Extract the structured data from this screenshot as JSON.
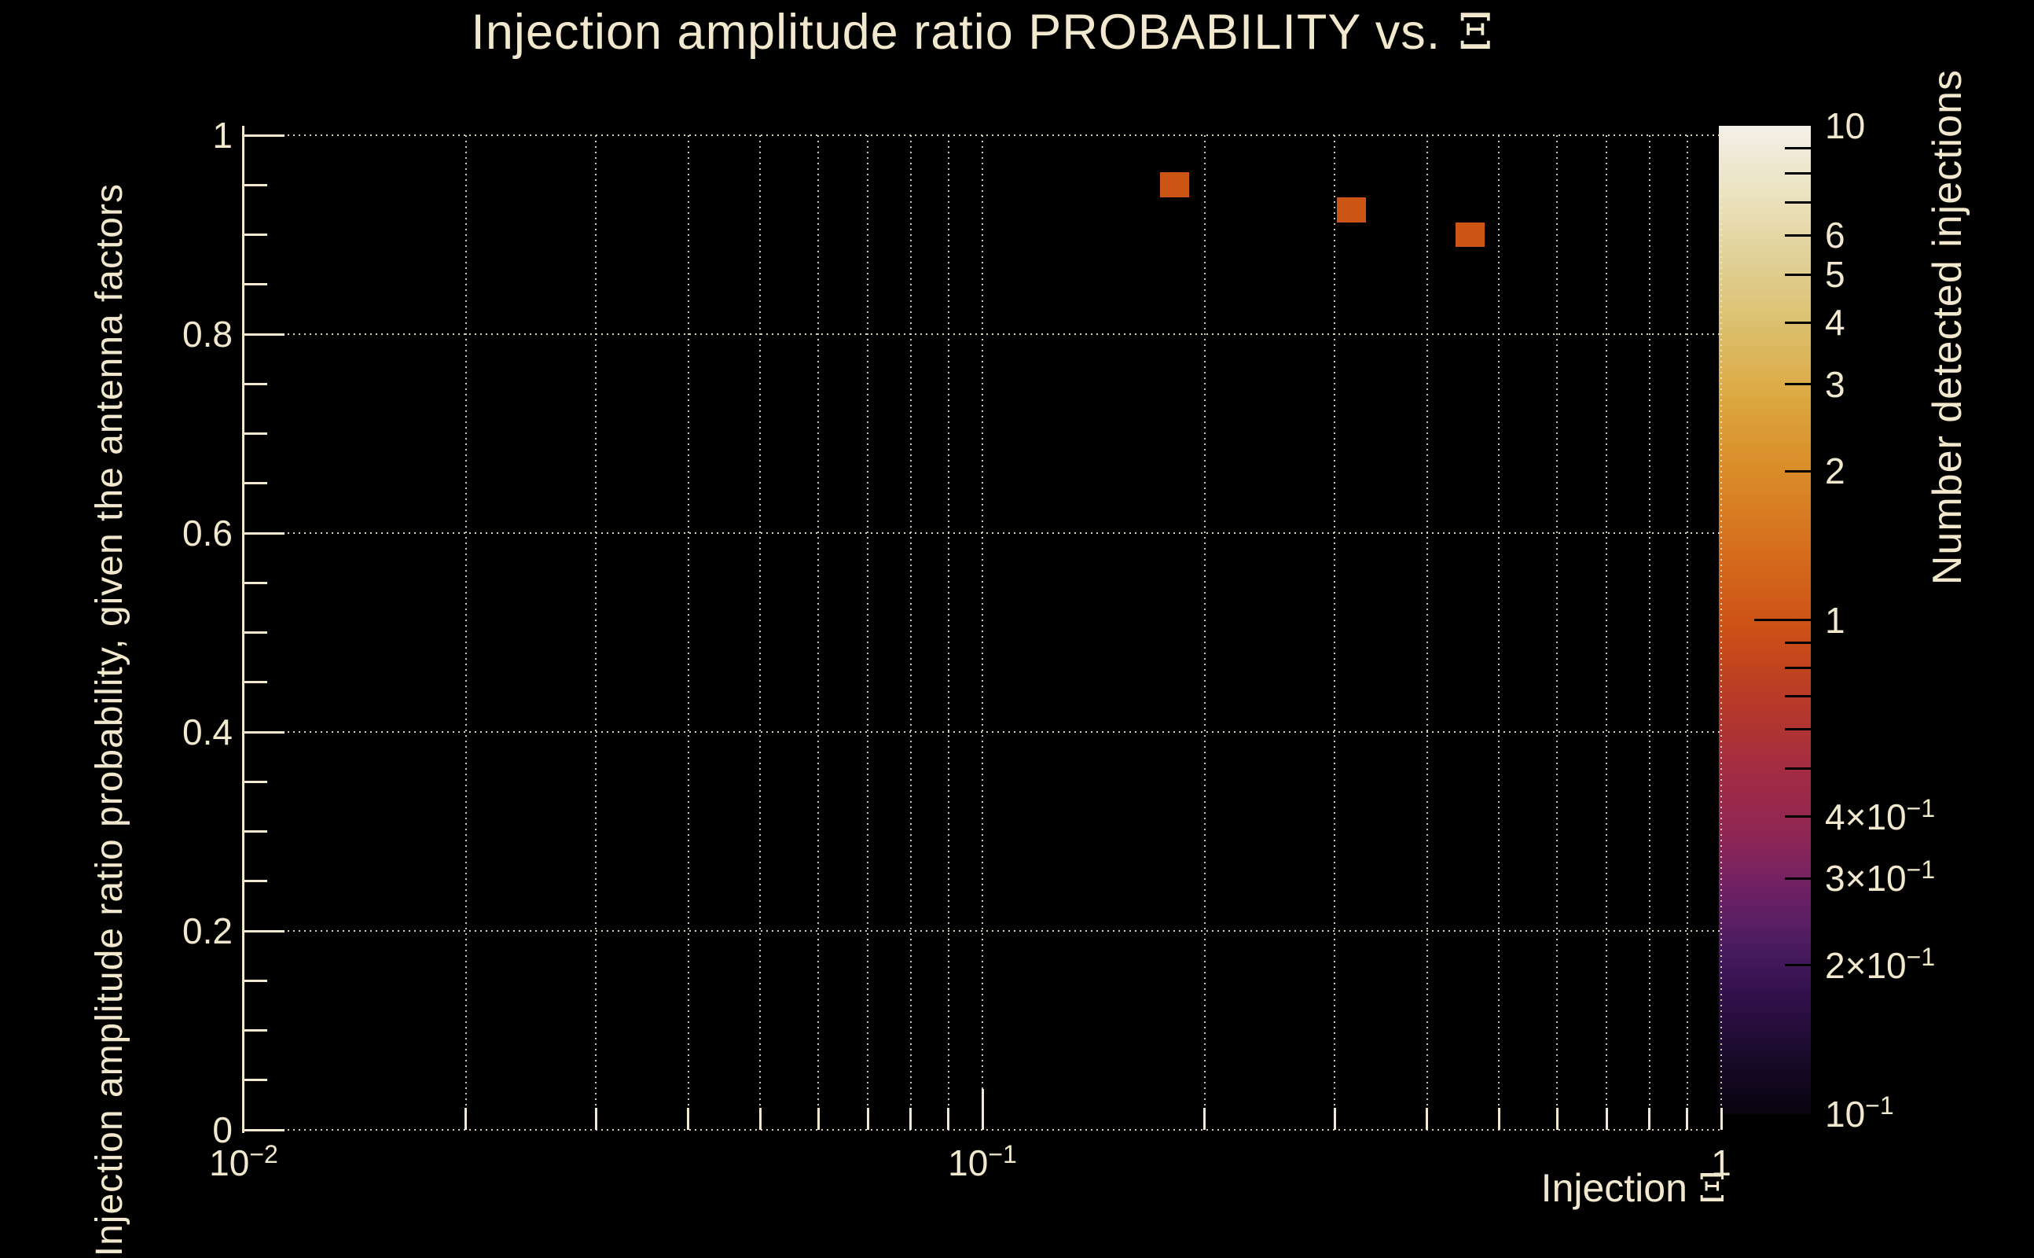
{
  "title": {
    "text": "Injection amplitude ratio PROBABILITY vs.",
    "symbol": "Ξ"
  },
  "x_axis_title": {
    "text": "Injection",
    "symbol": "Ξ"
  },
  "colors": {
    "background": "#000000",
    "foreground": "#f2e8cd",
    "bin_fill": "#cc5414",
    "colorbar_tick": "#000000",
    "grid": "rgba(242,232,205,0.9)"
  },
  "chart_data": {
    "type": "heatmap",
    "title": "Injection amplitude ratio PROBABILITY vs. Ξ",
    "xlabel": "Injection Ξ",
    "ylabel": "Injection amplitude ratio probability, given the antenna factors",
    "zlabel": "Number detected injections",
    "x_scale": "log",
    "xlim": [
      0.01,
      1
    ],
    "ylim": [
      0,
      1
    ],
    "z_scale": "log",
    "zlim": [
      0.1,
      10
    ],
    "grid_style": "dotted",
    "x_ticks": {
      "major": [
        {
          "value": 0.01,
          "prefix": "10",
          "sup": "−2"
        },
        {
          "value": 0.1,
          "prefix": "10",
          "sup": "−1"
        },
        {
          "value": 1,
          "prefix": "1",
          "sup": ""
        }
      ],
      "minor": [
        0.02,
        0.03,
        0.04,
        0.05,
        0.06,
        0.07,
        0.08,
        0.09,
        0.2,
        0.3,
        0.4,
        0.5,
        0.6,
        0.7,
        0.8,
        0.9
      ]
    },
    "y_ticks": {
      "major": [
        {
          "value": 1,
          "label": "1"
        },
        {
          "value": 0.8,
          "label": "0.8"
        },
        {
          "value": 0.6,
          "label": "0.6"
        },
        {
          "value": 0.4,
          "label": "0.4"
        },
        {
          "value": 0.2,
          "label": "0.2"
        },
        {
          "value": 0,
          "label": "0"
        }
      ],
      "minor_step": 0.05
    },
    "z_ticks": {
      "labels": [
        {
          "value": 10,
          "prefix": "10",
          "sup": ""
        },
        {
          "value": 6,
          "prefix": "6",
          "sup": ""
        },
        {
          "value": 5,
          "prefix": "5",
          "sup": ""
        },
        {
          "value": 4,
          "prefix": "4",
          "sup": ""
        },
        {
          "value": 3,
          "prefix": "3",
          "sup": ""
        },
        {
          "value": 2,
          "prefix": "2",
          "sup": ""
        },
        {
          "value": 1,
          "prefix": "1",
          "sup": ""
        },
        {
          "value": 0.4,
          "prefix": "4×10",
          "sup": "−1"
        },
        {
          "value": 0.3,
          "prefix": "3×10",
          "sup": "−1"
        },
        {
          "value": 0.2,
          "prefix": "2×10",
          "sup": "−1"
        },
        {
          "value": 0.1,
          "prefix": "10",
          "sup": "−1"
        }
      ],
      "minor": [
        9,
        8,
        7,
        6,
        5,
        4,
        3,
        2,
        0.9,
        0.8,
        0.7,
        0.6,
        0.5,
        0.4,
        0.3,
        0.2
      ],
      "major": [
        1
      ]
    },
    "bins": [
      {
        "x": 0.182,
        "y": 0.95,
        "value": 1
      },
      {
        "x": 0.316,
        "y": 0.925,
        "value": 1
      },
      {
        "x": 0.457,
        "y": 0.9,
        "value": 1
      }
    ],
    "bin_width_decades": 0.04,
    "bin_height": 0.025
  }
}
